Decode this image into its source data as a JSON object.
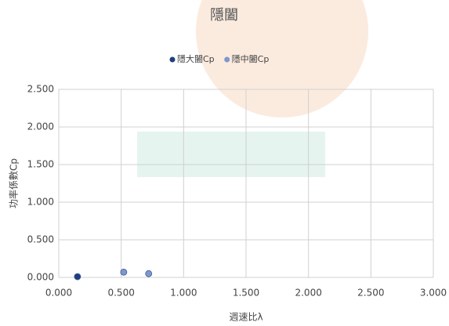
{
  "chart_data": {
    "type": "scatter",
    "title": "隱闔",
    "x_label": "週速比λ",
    "y_label": "功率係數Cp",
    "series": [
      {
        "name": "隱大闔Cp",
        "color": "#1f3f7a",
        "x": [
          0.15
        ],
        "values": [
          0.01
        ]
      },
      {
        "name": "隱中闔Cp",
        "color": "#7f97cc",
        "x": [
          0.52,
          0.72
        ],
        "values": [
          0.07,
          0.05
        ]
      }
    ],
    "xlim": [
      0,
      3
    ],
    "ylim": [
      0,
      2.5
    ],
    "xticks": [
      {
        "value": 0,
        "label": "0.000"
      },
      {
        "value": 0.5,
        "label": "0.500"
      },
      {
        "value": 1,
        "label": "1.000"
      },
      {
        "value": 1.5,
        "label": "1.500"
      },
      {
        "value": 2,
        "label": "2.000"
      },
      {
        "value": 2.5,
        "label": "2.500"
      },
      {
        "value": 3,
        "label": "3.000"
      }
    ],
    "yticks": [
      {
        "value": 0,
        "label": "0.000"
      },
      {
        "value": 0.5,
        "label": "0.500"
      },
      {
        "value": 1,
        "label": "1.000"
      },
      {
        "value": 1.5,
        "label": "1.500"
      },
      {
        "value": 2,
        "label": "2.000"
      },
      {
        "value": 2.5,
        "label": "2.500"
      }
    ],
    "grid": true,
    "legend": "top"
  }
}
